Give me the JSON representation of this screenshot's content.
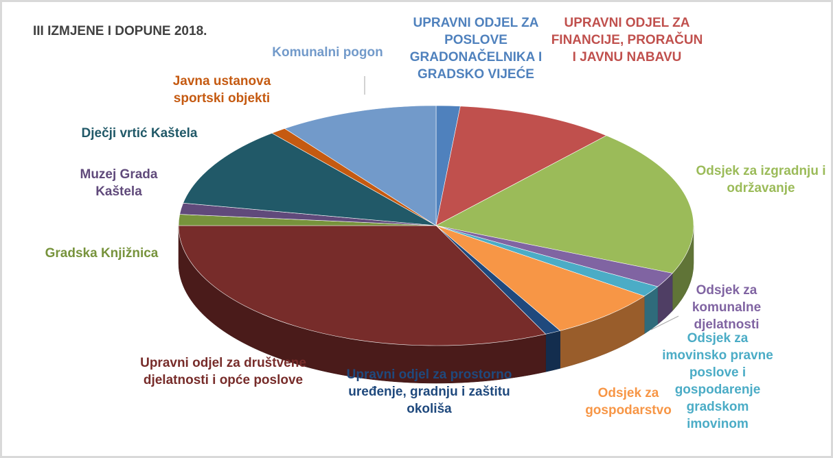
{
  "chart_data": {
    "type": "pie",
    "title": "III IZMJENE I DOPUNE 2018.",
    "categories": [
      "UPRAVNI ODJEL ZA POSLOVE GRADONAČELNIKA I GRADSKO VIJEĆE",
      "UPRAVNI ODJEL ZA FINANCIJE, PRORAČUN I JAVNU NABAVU",
      "Odsjek za izgradnju i održavanje",
      "Odsjek za komunalne djelatnosti",
      "Odsjek za imovinsko pravne poslove i gospodarenje gradskom imovinom",
      "Odsjek za gospodarstvo",
      "Upravni odjel za prostorno uređenje, gradnju i zaštitu okoliša",
      "Upravni odjel za društvene djelatnosti i opće poslove",
      "Gradska Knjižnica",
      "Muzej Grada Kaštela",
      "Dječji vrtić Kaštela",
      "Javna ustanova sportski objekti",
      "Komunalni pogon"
    ],
    "values": [
      1.5,
      10,
      20,
      2,
      1.5,
      7,
      1,
      32,
      1.5,
      1.5,
      11,
      1,
      10
    ],
    "colors": [
      "#4f81bd",
      "#c0504d",
      "#9bbb59",
      "#8064a2",
      "#4bacc6",
      "#f79646",
      "#1f497d",
      "#772c2a",
      "#77933c",
      "#604a7b",
      "#215968",
      "#c55a11",
      "#729aca"
    ]
  }
}
